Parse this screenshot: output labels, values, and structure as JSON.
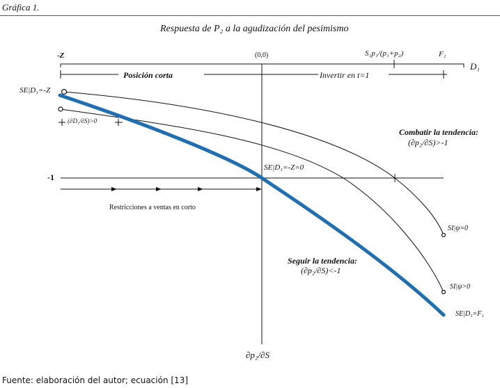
{
  "figure_label": "Gráfica 1.",
  "title": "Respuesta de P₂ a la agudización del pesimismo",
  "axis": {
    "x_label": "D₁",
    "y_label": "∂p₂/∂S",
    "origin": "(0,0)",
    "neg_z": "-Z",
    "tick_s1": "S₁p₁/(p₁+p₂)",
    "tick_f1": "F₁",
    "minus_one": "-1"
  },
  "labels": {
    "short_position": "Posición corta",
    "invest_t1": "Invertir en t=1",
    "se_neg_z": "SE|D₁=-Z",
    "dd_ds": "(∂D₁/∂S)>0",
    "fight_trend": "Combatir la tendencia:",
    "fight_cond": "(∂p₂/∂S)>-1",
    "se_zero": "SE|D₁=-Z=0",
    "short_restrictions": "Restricciones a ventas en corto",
    "si_psi0": "SI|ψ=0",
    "follow_trend": "Seguir la tendencia:",
    "follow_cond": "(∂p₂/∂S)<-1",
    "si_psi_pos": "SI|ψ>0",
    "se_f1": "SE|D₁=F₁"
  },
  "source": "Fuente: elaboración del autor; ecuación [13]",
  "colors": {
    "blue_curve": "#1f6fb2",
    "ink": "#111111"
  }
}
